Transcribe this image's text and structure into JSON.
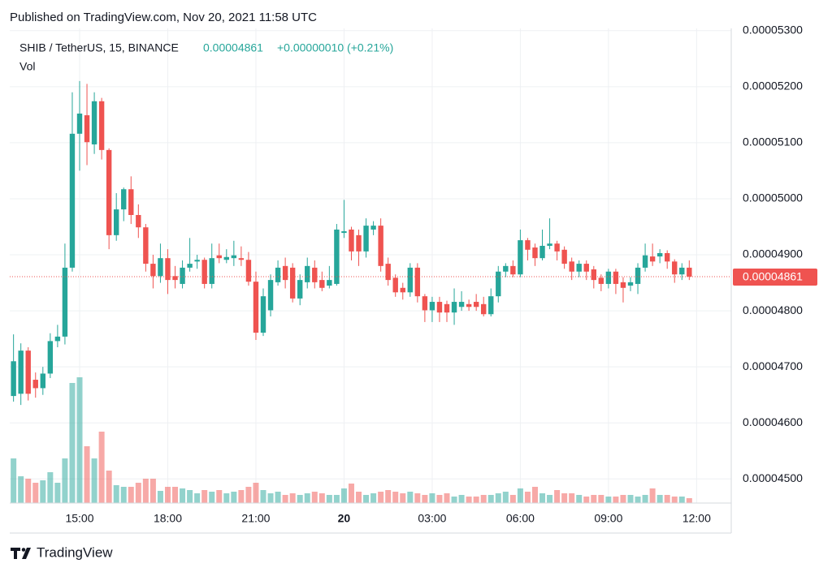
{
  "header": {
    "published": "Published on TradingView.com, Nov 20, 2021 11:58 UTC",
    "symbol": "SHIB / TetherUS, 15, BINANCE",
    "change": "+0.00000010 (+0.21%)",
    "volume_label": "Vol"
  },
  "chart_data": {
    "type": "candlestick",
    "categories": [
      null,
      null,
      null,
      null,
      null,
      null,
      null,
      null,
      null,
      "15:00",
      null,
      null,
      null,
      null,
      null,
      null,
      null,
      null,
      null,
      null,
      null,
      "18:00",
      null,
      null,
      null,
      null,
      null,
      null,
      null,
      null,
      null,
      null,
      null,
      "21:00",
      null,
      null,
      null,
      null,
      null,
      null,
      null,
      null,
      null,
      null,
      null,
      "20",
      null,
      null,
      null,
      null,
      null,
      null,
      null,
      null,
      null,
      null,
      null,
      "03:00",
      null,
      null,
      null,
      null,
      null,
      null,
      null,
      null,
      null,
      null,
      null,
      "06:00",
      null,
      null,
      null,
      null,
      null,
      null,
      null,
      null,
      null,
      null,
      null,
      "09:00",
      null,
      null,
      null,
      null,
      null,
      null,
      null,
      null,
      null,
      null,
      null,
      "12:00"
    ],
    "open": [
      4.648e-05,
      4.652e-05,
      4.729e-05,
      4.677e-05,
      4.662e-05,
      4.688e-05,
      4.746e-05,
      4.754e-05,
      4.877e-05,
      5.116e-05,
      5.149e-05,
      5.097e-05,
      5.174e-05,
      5.087e-05,
      4.935e-05,
      4.981e-05,
      5.017e-05,
      4.971e-05,
      4.949e-05,
      4.884e-05,
      4.862e-05,
      4.894e-05,
      4.862e-05,
      4.848e-05,
      4.877e-05,
      4.888e-05,
      4.891e-05,
      4.848e-05,
      4.899e-05,
      4.891e-05,
      4.894e-05,
      4.894e-05,
      4.891e-05,
      4.852e-05,
      4.761e-05,
      4.801e-05,
      4.851e-05,
      4.88e-05,
      4.877e-05,
      4.822e-05,
      4.851e-05,
      4.877e-05,
      4.855e-05,
      4.845e-05,
      4.848e-05,
      4.939e-05,
      4.945e-05,
      4.935e-05,
      4.906e-05,
      4.945e-05,
      4.952e-05,
      4.884e-05,
      4.859e-05,
      4.841e-05,
      4.833e-05,
      4.877e-05,
      4.826e-05,
      4.801e-05,
      4.816e-05,
      4.812e-05,
      4.797e-05,
      4.807e-05,
      4.812e-05,
      4.816e-05,
      4.812e-05,
      4.794e-05,
      4.826e-05,
      4.87e-05,
      4.88e-05,
      4.865e-05,
      4.926e-05,
      4.913e-05,
      4.894e-05,
      4.916e-05,
      4.92e-05,
      4.909e-05,
      4.888e-05,
      4.87e-05,
      4.884e-05,
      4.874e-05,
      4.859e-05,
      4.848e-05,
      4.87e-05,
      4.851e-05,
      4.845e-05,
      4.848e-05,
      4.877e-05,
      4.897e-05,
      4.897e-05,
      4.903e-05,
      4.888e-05,
      4.865e-05,
      4.877e-05,
      null
    ],
    "high": [
      4.758e-05,
      4.742e-05,
      4.735e-05,
      4.69e-05,
      4.7e-05,
      4.76e-05,
      4.775e-05,
      4.92e-05,
      5.19e-05,
      5.21e-05,
      5.205e-05,
      5.19e-05,
      5.18e-05,
      5.09e-05,
      5.01e-05,
      5.02e-05,
      5.04e-05,
      4.99e-05,
      4.955e-05,
      4.9e-05,
      4.92e-05,
      4.91e-05,
      4.88e-05,
      4.89e-05,
      4.93e-05,
      4.9e-05,
      4.895e-05,
      4.92e-05,
      4.92e-05,
      4.91e-05,
      4.925e-05,
      4.915e-05,
      4.905e-05,
      4.87e-05,
      4.84e-05,
      4.865e-05,
      4.89e-05,
      4.895e-05,
      4.885e-05,
      4.865e-05,
      4.895e-05,
      4.89e-05,
      4.87e-05,
      4.88e-05,
      4.955e-05,
      4.998e-05,
      4.95e-05,
      4.945e-05,
      4.965e-05,
      4.96e-05,
      4.965e-05,
      4.895e-05,
      4.865e-05,
      4.85e-05,
      4.885e-05,
      4.885e-05,
      4.83e-05,
      4.825e-05,
      4.825e-05,
      4.818e-05,
      4.84e-05,
      4.835e-05,
      4.82e-05,
      4.83e-05,
      4.825e-05,
      4.84e-05,
      4.88e-05,
      4.885e-05,
      4.89e-05,
      4.945e-05,
      4.93e-05,
      4.92e-05,
      4.945e-05,
      4.965e-05,
      4.925e-05,
      4.915e-05,
      4.895e-05,
      4.89e-05,
      4.89e-05,
      4.88e-05,
      4.865e-05,
      4.875e-05,
      4.875e-05,
      4.86e-05,
      4.86e-05,
      4.885e-05,
      4.92e-05,
      4.92e-05,
      4.91e-05,
      4.908e-05,
      4.892e-05,
      4.885e-05,
      4.89e-05,
      null
    ],
    "low": [
      4.638e-05,
      4.632e-05,
      4.64e-05,
      4.645e-05,
      4.65e-05,
      4.68e-05,
      4.735e-05,
      4.74e-05,
      4.87e-05,
      5.05e-05,
      5.06e-05,
      5.08e-05,
      5.07e-05,
      4.91e-05,
      4.925e-05,
      4.96e-05,
      4.955e-05,
      4.93e-05,
      4.87e-05,
      4.84e-05,
      4.85e-05,
      4.83e-05,
      4.84e-05,
      4.84e-05,
      4.87e-05,
      4.875e-05,
      4.84e-05,
      4.84e-05,
      4.885e-05,
      4.885e-05,
      4.88e-05,
      4.88e-05,
      4.845e-05,
      4.748e-05,
      4.755e-05,
      4.79e-05,
      4.845e-05,
      4.84e-05,
      4.815e-05,
      4.81e-05,
      4.84e-05,
      4.84e-05,
      4.835e-05,
      4.84e-05,
      4.845e-05,
      4.93e-05,
      4.89e-05,
      4.88e-05,
      4.895e-05,
      4.935e-05,
      4.87e-05,
      4.845e-05,
      4.825e-05,
      4.82e-05,
      4.825e-05,
      4.815e-05,
      4.78e-05,
      4.78e-05,
      4.78e-05,
      4.78e-05,
      4.775e-05,
      4.8e-05,
      4.8e-05,
      4.8e-05,
      4.79e-05,
      4.79e-05,
      4.815e-05,
      4.86e-05,
      4.86e-05,
      4.86e-05,
      4.89e-05,
      4.88e-05,
      4.89e-05,
      4.91e-05,
      4.89e-05,
      4.875e-05,
      4.855e-05,
      4.86e-05,
      4.855e-05,
      4.84e-05,
      4.835e-05,
      4.84e-05,
      4.83e-05,
      4.815e-05,
      4.835e-05,
      4.83e-05,
      4.87e-05,
      4.88e-05,
      4.885e-05,
      4.875e-05,
      4.85e-05,
      4.855e-05,
      4.855e-05,
      null
    ],
    "close": [
      4.71e-05,
      4.729e-05,
      4.652e-05,
      4.662e-05,
      4.688e-05,
      4.746e-05,
      4.754e-05,
      4.877e-05,
      5.116e-05,
      5.152e-05,
      5.101e-05,
      5.174e-05,
      5.087e-05,
      4.935e-05,
      4.981e-05,
      5.017e-05,
      4.971e-05,
      4.949e-05,
      4.884e-05,
      4.862e-05,
      4.894e-05,
      4.855e-05,
      4.855e-05,
      4.877e-05,
      4.884e-05,
      4.891e-05,
      4.848e-05,
      4.894e-05,
      4.894e-05,
      4.896e-05,
      4.899e-05,
      4.891e-05,
      4.852e-05,
      4.761e-05,
      4.826e-05,
      4.855e-05,
      4.877e-05,
      4.855e-05,
      4.822e-05,
      4.855e-05,
      4.88e-05,
      4.851e-05,
      4.841e-05,
      4.855e-05,
      4.945e-05,
      4.942e-05,
      4.906e-05,
      4.906e-05,
      4.952e-05,
      4.952e-05,
      4.88e-05,
      4.855e-05,
      4.833e-05,
      4.833e-05,
      4.877e-05,
      4.826e-05,
      4.801e-05,
      4.816e-05,
      4.797e-05,
      4.797e-05,
      4.816e-05,
      4.816e-05,
      4.807e-05,
      4.807e-05,
      4.794e-05,
      4.826e-05,
      4.87e-05,
      4.88e-05,
      4.865e-05,
      4.926e-05,
      4.909e-05,
      4.894e-05,
      4.916e-05,
      4.92e-05,
      4.906e-05,
      4.884e-05,
      4.87e-05,
      4.884e-05,
      4.87e-05,
      4.855e-05,
      4.848e-05,
      4.87e-05,
      4.848e-05,
      4.841e-05,
      4.851e-05,
      4.877e-05,
      4.899e-05,
      4.888e-05,
      4.903e-05,
      4.888e-05,
      4.865e-05,
      4.877e-05,
      4.861e-05,
      null
    ],
    "volume": [
      55,
      33,
      30,
      25,
      28,
      38,
      25,
      55,
      148,
      155,
      70,
      55,
      88,
      40,
      22,
      20,
      20,
      25,
      30,
      30,
      15,
      20,
      20,
      18,
      16,
      12,
      16,
      14,
      16,
      12,
      14,
      16,
      20,
      25,
      16,
      12,
      14,
      10,
      12,
      10,
      12,
      14,
      12,
      10,
      10,
      18,
      24,
      14,
      10,
      12,
      14,
      16,
      14,
      12,
      14,
      12,
      10,
      12,
      10,
      12,
      8,
      10,
      8,
      8,
      10,
      10,
      12,
      14,
      10,
      18,
      14,
      20,
      12,
      10,
      16,
      12,
      12,
      10,
      8,
      10,
      10,
      8,
      8,
      10,
      10,
      8,
      10,
      18,
      10,
      10,
      8,
      8,
      6,
      null
    ],
    "up_color": "#26a69a",
    "down_color": "#ef5350",
    "ylim": [
      4.457e-05,
      5.304e-05
    ],
    "yticks": [
      {
        "value": 4.5e-05,
        "label": "0.00004500"
      },
      {
        "value": 4.6e-05,
        "label": "0.00004600"
      },
      {
        "value": 4.7e-05,
        "label": "0.00004700"
      },
      {
        "value": 4.8e-05,
        "label": "0.00004800"
      },
      {
        "value": 4.9e-05,
        "label": "0.00004900"
      },
      {
        "value": 5e-05,
        "label": "0.00005000"
      },
      {
        "value": 5.1e-05,
        "label": "0.00005100"
      },
      {
        "value": 5.2e-05,
        "label": "0.00005200"
      },
      {
        "value": 5.3e-05,
        "label": "0.00005300"
      }
    ],
    "last_price": {
      "value": 4.861e-05,
      "label": "0.00004861"
    },
    "grid": true
  },
  "footer": {
    "brand": "TradingView"
  }
}
